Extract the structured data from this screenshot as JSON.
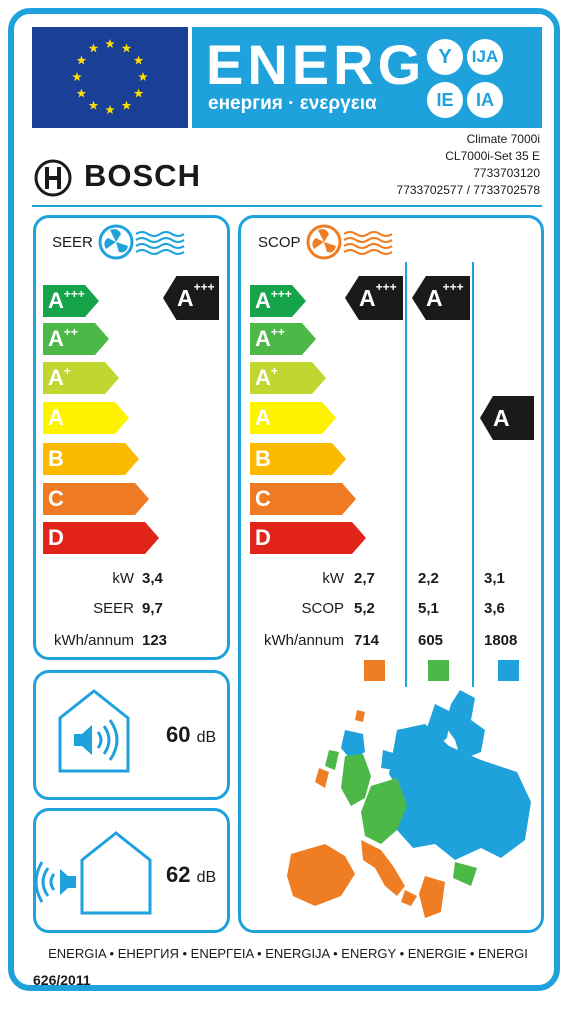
{
  "header": {
    "energy_word": "ENERG",
    "energy_subtitle": "енергия · ενεργεια",
    "circles": [
      "Y",
      "IJA",
      "IE",
      "IA"
    ],
    "brand": "BOSCH",
    "model_lines": [
      "Climate 7000i",
      "CL7000i-Set 35 E",
      "7733703120",
      "7733702577 / 7733702578"
    ]
  },
  "colors": {
    "frame": "#1fa2dc",
    "classes": [
      "#16a44a",
      "#4cb848",
      "#bfd730",
      "#fff200",
      "#fbb900",
      "#ee7a23",
      "#e2231a"
    ],
    "zone_warmer": "#ee7d23",
    "zone_average": "#4cb848",
    "zone_colder": "#1fa2dc"
  },
  "cooling": {
    "title": "SEER",
    "icon": "fan-cooling-icon",
    "classes": [
      {
        "letter": "A",
        "sup": "+++"
      },
      {
        "letter": "A",
        "sup": "++"
      },
      {
        "letter": "A",
        "sup": "+"
      },
      {
        "letter": "A",
        "sup": ""
      },
      {
        "letter": "B",
        "sup": ""
      },
      {
        "letter": "C",
        "sup": ""
      },
      {
        "letter": "D",
        "sup": ""
      }
    ],
    "rating": {
      "letter": "A",
      "sup": "+++"
    },
    "rows": [
      {
        "label": "kW",
        "value": "3,4"
      },
      {
        "label": "SEER",
        "value": "9,7"
      },
      {
        "label": "kWh/annum",
        "value": "123"
      }
    ]
  },
  "heating": {
    "title": "SCOP",
    "icon": "fan-heating-icon",
    "classes": [
      {
        "letter": "A",
        "sup": "+++"
      },
      {
        "letter": "A",
        "sup": "++"
      },
      {
        "letter": "A",
        "sup": "+"
      },
      {
        "letter": "A",
        "sup": ""
      },
      {
        "letter": "B",
        "sup": ""
      },
      {
        "letter": "C",
        "sup": ""
      },
      {
        "letter": "D",
        "sup": ""
      }
    ],
    "ratings": [
      {
        "letter": "A",
        "sup": "+++"
      },
      {
        "letter": "A",
        "sup": "+++"
      },
      {
        "letter": "A",
        "sup": ""
      }
    ],
    "labels": [
      "kW",
      "SCOP",
      "kWh/annum"
    ],
    "zones": [
      {
        "kw": "2,7",
        "scop": "5,2",
        "kwh": "714"
      },
      {
        "kw": "2,2",
        "scop": "5,1",
        "kwh": "605"
      },
      {
        "kw": "3,1",
        "scop": "3,6",
        "kwh": "1808"
      }
    ]
  },
  "noise": {
    "indoor": {
      "value": "60",
      "unit": "dB"
    },
    "outdoor": {
      "value": "62",
      "unit": "dB"
    }
  },
  "footer": {
    "languages": "ENERGIA • ЕНЕРГИЯ • ΕΝΕΡΓΕΙΑ • ENERGIJA • ENERGY • ENERGIE • ENERGI",
    "regulation": "626/2011"
  }
}
